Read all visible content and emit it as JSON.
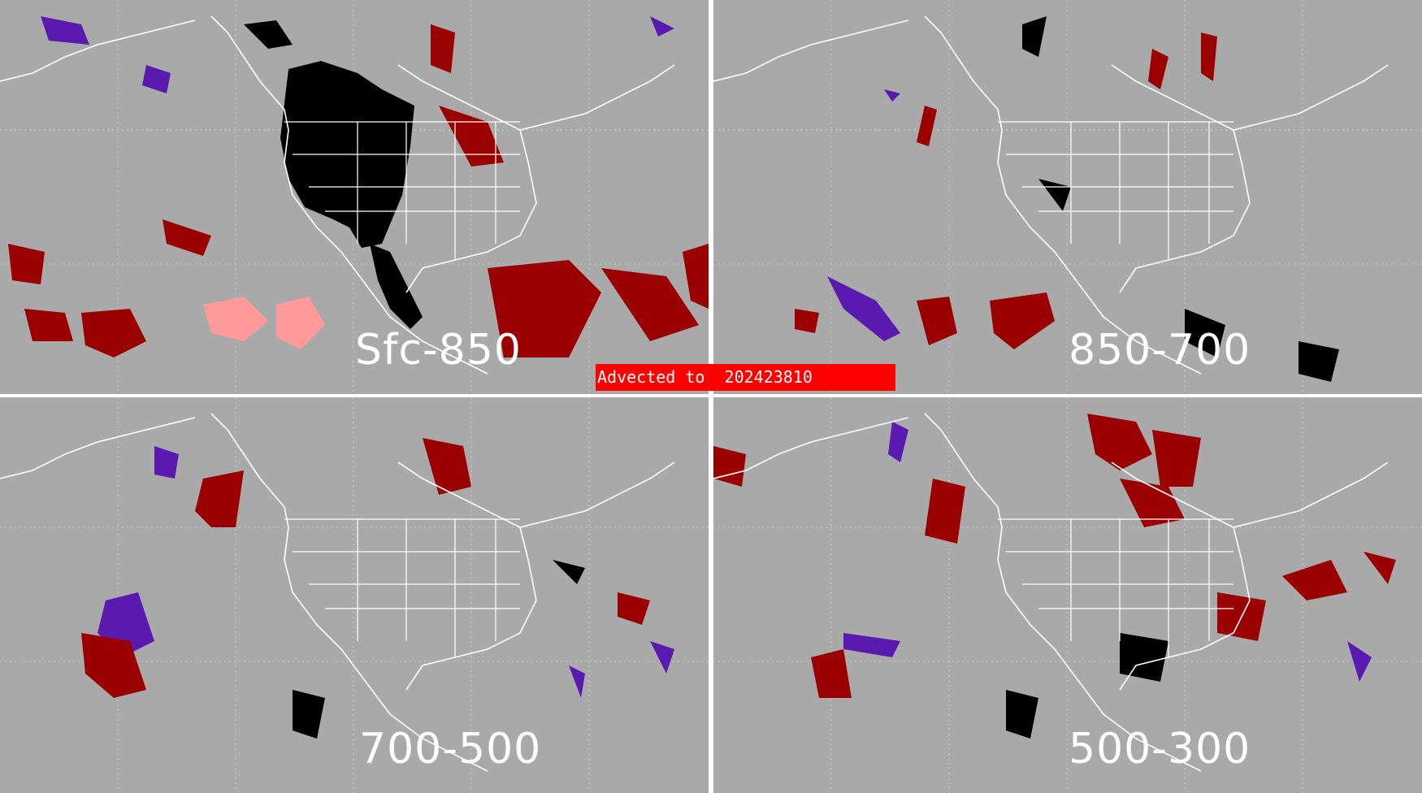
{
  "banner": {
    "text": "Advected to  202423810",
    "color": "#ff0000"
  },
  "panels": [
    {
      "id": "tl",
      "label": "Sfc-850"
    },
    {
      "id": "tr",
      "label": "850-700"
    },
    {
      "id": "bl",
      "label": "700-500"
    },
    {
      "id": "br",
      "label": "500-300"
    }
  ],
  "colors": {
    "background": "#a9a9a9",
    "dark_red": "#9b0000",
    "pink": "#ff9a9a",
    "black": "#000000",
    "purple": "#5a1ab0",
    "map_lines": "#ffffff"
  }
}
